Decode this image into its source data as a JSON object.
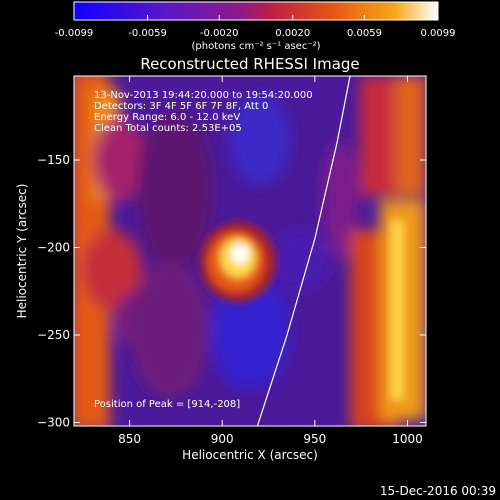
{
  "colorbar": {
    "ticks": [
      "-0.0099",
      "-0.0059",
      "-0.0020",
      "0.0020",
      "0.0059",
      "0.0099"
    ],
    "tick_values": [
      -0.0099,
      -0.0059,
      -0.002,
      0.002,
      0.0059,
      0.0099
    ],
    "units": "(photons cm⁻² s⁻¹ asec⁻²)",
    "range": [
      -0.0099,
      0.0099
    ],
    "colors": [
      "#1000ff",
      "#5a16c8",
      "#8a1a8c",
      "#c02040",
      "#e85a12",
      "#f4a818",
      "#ffffff"
    ]
  },
  "chart_data": {
    "type": "heatmap",
    "title": "Reconstructed RHESSI Image",
    "xlabel": "Heliocentric X (arcsec)",
    "ylabel": "Heliocentric Y (arcsec)",
    "xlim": [
      820,
      1010
    ],
    "ylim": [
      -302,
      -102
    ],
    "xticks": [
      850,
      900,
      950,
      1000
    ],
    "xtick_labels": [
      "850",
      "900",
      "950",
      "1000"
    ],
    "yticks": [
      -150,
      -200,
      -250,
      -300
    ],
    "ytick_labels": [
      "−150",
      "−200",
      "−250",
      "−300"
    ],
    "annotations": [
      "13-Nov-2013 19:44:20.000 to 19:54:20.000",
      "Detectors: 3F 4F 5F 6F 7F 8F, Att 0",
      "Energy Range: 6.0 - 12.0 keV",
      "Clean    Total counts: 2.53E+05"
    ],
    "peak_label": "Position of Peak = [914,-208]",
    "peak": [
      914,
      -208
    ],
    "limb_curve": [
      [
        919,
        -302
      ],
      [
        935,
        -250
      ],
      [
        950,
        -195
      ],
      [
        962,
        -140
      ],
      [
        969,
        -102
      ]
    ],
    "colors": {
      "limb": "#ffffff"
    }
  },
  "footer": {
    "date": "15-Dec-2016 00:39"
  }
}
